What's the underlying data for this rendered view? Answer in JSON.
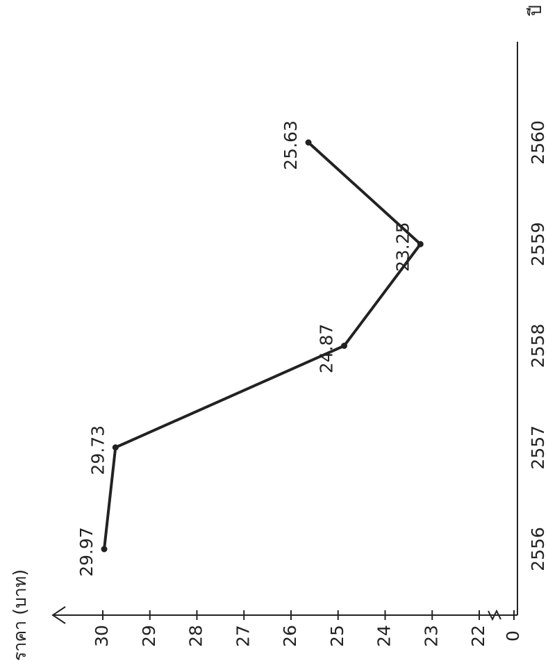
{
  "chart_data": {
    "type": "line",
    "x_label": "ปี",
    "y_label": "ราคา (บาท)",
    "categories": [
      "2556",
      "2557",
      "2558",
      "2559",
      "2560"
    ],
    "values": [
      29.97,
      29.73,
      24.87,
      23.25,
      25.63
    ],
    "color": "#222222",
    "ylim": [
      22,
      30
    ],
    "yticks": [
      0,
      22,
      23,
      24,
      25,
      26,
      27,
      28,
      29,
      30
    ],
    "axis_break": true
  }
}
